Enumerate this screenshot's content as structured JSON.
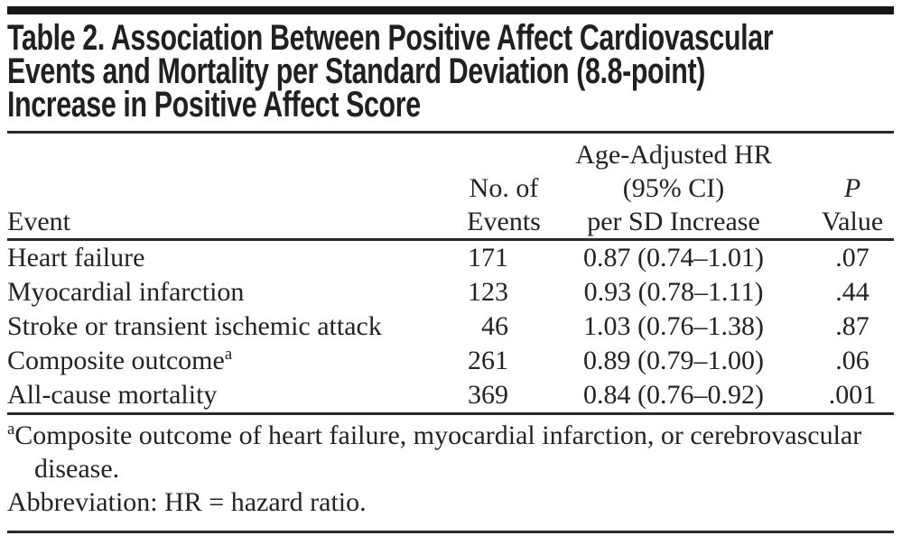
{
  "title": {
    "lines": [
      "Table 2. Association Between Positive Affect Cardiovascular",
      "Events and Mortality per Standard Deviation (8.8-point)",
      "Increase in Positive Affect Score"
    ]
  },
  "header": {
    "event": "Event",
    "no_of_events_lines": [
      "No. of",
      "Events"
    ],
    "hr_lines": [
      "Age-Adjusted HR",
      "(95% CI)",
      "per SD Increase"
    ],
    "p_label_italic": "P",
    "p_label_rest": " Value"
  },
  "rows": [
    {
      "event": "Heart failure",
      "sup": "",
      "n": "171",
      "hr": "0.87 (0.74–1.01)",
      "p": ".07"
    },
    {
      "event": "Myocardial infarction",
      "sup": "",
      "n": "123",
      "hr": "0.93 (0.78–1.11)",
      "p": ".44"
    },
    {
      "event": "Stroke or transient ischemic attack",
      "sup": "",
      "n": "46",
      "hr": "1.03 (0.76–1.38)",
      "p": ".87"
    },
    {
      "event": "Composite outcome",
      "sup": "a",
      "n": "261",
      "hr": "0.89 (0.79–1.00)",
      "p": ".06"
    },
    {
      "event": "All-cause mortality",
      "sup": "",
      "n": "369",
      "hr": "0.84 (0.76–0.92)",
      "p": ".001"
    }
  ],
  "footnotes": {
    "fn1_sup": "a",
    "fn1_text": "Composite outcome of heart failure, myocardial infarction, or cerebrovascular disease.",
    "fn2": "Abbreviation: HR = hazard ratio."
  },
  "colors": {
    "text": "#231f20",
    "rule": "#2b2829",
    "top_bar": "#191619",
    "background": "#ffffff"
  },
  "chart_data": {
    "type": "table",
    "title": "Table 2. Association Between Positive Affect Cardiovascular Events and Mortality per Standard Deviation (8.8-point) Increase in Positive Affect Score",
    "columns": [
      "Event",
      "No. of Events",
      "Age-Adjusted HR (95% CI) per SD Increase",
      "P Value"
    ],
    "rows": [
      [
        "Heart failure",
        171,
        "0.87 (0.74–1.01)",
        0.07
      ],
      [
        "Myocardial infarction",
        123,
        "0.93 (0.78–1.11)",
        0.44
      ],
      [
        "Stroke or transient ischemic attack",
        46,
        "1.03 (0.76–1.38)",
        0.87
      ],
      [
        "Composite outcome",
        261,
        "0.89 (0.79–1.00)",
        0.06
      ],
      [
        "All-cause mortality",
        369,
        "0.84 (0.76–0.92)",
        0.001
      ]
    ]
  }
}
